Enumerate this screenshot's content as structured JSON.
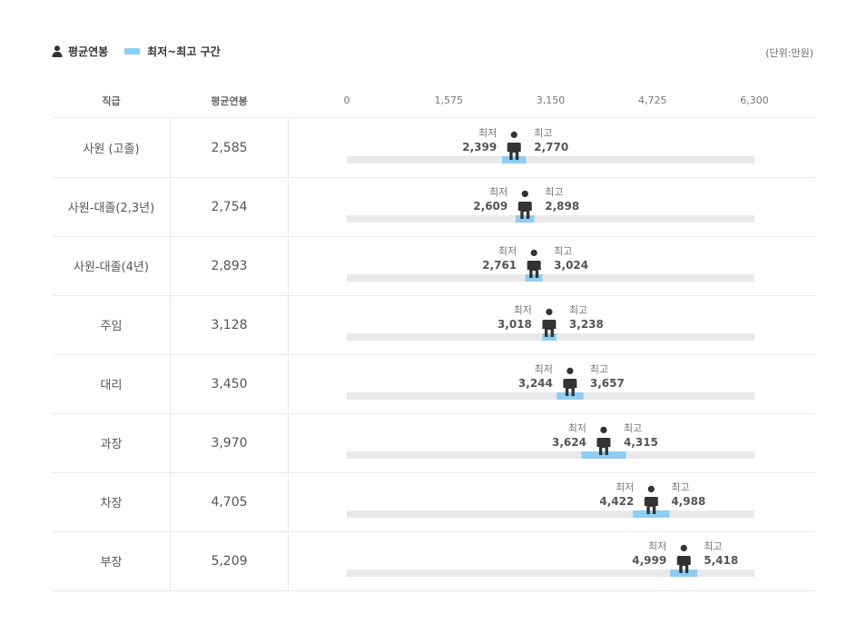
{
  "legend": {
    "avg_label": "평균연봉",
    "range_label": "최저~최고 구간"
  },
  "unit": "(단위:만원)",
  "headers": {
    "title": "직급",
    "avg": "평균연봉"
  },
  "labels": {
    "min": "최저",
    "max": "최고"
  },
  "colors": {
    "track": "#e9e9e9",
    "range": "#8ecdf4",
    "person": "#333333"
  },
  "chart_data": {
    "type": "bar",
    "x_ticks": [
      0,
      1575,
      3150,
      4725,
      6300
    ],
    "x_tick_labels": [
      "0",
      "1,575",
      "3,150",
      "4,725",
      "6,300"
    ],
    "xlim": [
      0,
      6300
    ],
    "categories": [
      "사원 (고졸)",
      "사원-대졸(2,3년)",
      "사원-대졸(4년)",
      "주임",
      "대리",
      "과장",
      "차장",
      "부장"
    ],
    "series": [
      {
        "name": "평균연봉",
        "values": [
          2585,
          2754,
          2893,
          3128,
          3450,
          3970,
          4705,
          5209
        ],
        "labels": [
          "2,585",
          "2,754",
          "2,893",
          "3,128",
          "3,450",
          "3,970",
          "4,705",
          "5,209"
        ]
      },
      {
        "name": "최저",
        "values": [
          2399,
          2609,
          2761,
          3018,
          3244,
          3624,
          4422,
          4999
        ],
        "labels": [
          "2,399",
          "2,609",
          "2,761",
          "3,018",
          "3,244",
          "3,624",
          "4,422",
          "4,999"
        ]
      },
      {
        "name": "최고",
        "values": [
          2770,
          2898,
          3024,
          3238,
          3657,
          4315,
          4988,
          5418
        ],
        "labels": [
          "2,770",
          "2,898",
          "3,024",
          "3,238",
          "3,657",
          "4,315",
          "4,988",
          "5,418"
        ]
      }
    ]
  }
}
